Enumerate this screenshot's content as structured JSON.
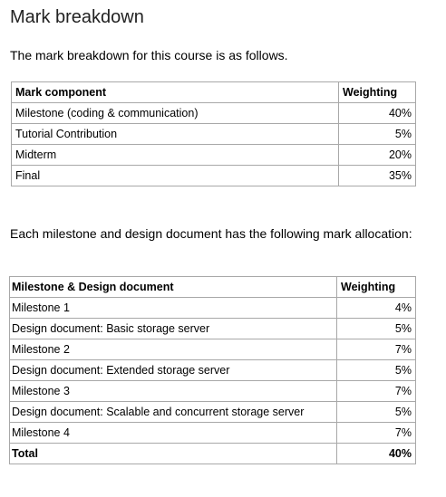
{
  "heading": "Mark breakdown",
  "intro": "The mark breakdown for this course is as follows.",
  "table1": {
    "headers": [
      "Mark component",
      "Weighting"
    ],
    "rows": [
      [
        "Milestone (coding & communication)",
        "40%"
      ],
      [
        "Tutorial Contribution",
        "5%"
      ],
      [
        "Midterm",
        "20%"
      ],
      [
        "Final",
        "35%"
      ]
    ]
  },
  "description": "Each milestone and design document has the following mark allocation:",
  "table2": {
    "headers": [
      "Milestone & Design document",
      "Weighting"
    ],
    "rows": [
      [
        "Milestone 1",
        "4%"
      ],
      [
        "Design document: Basic storage server",
        "5%"
      ],
      [
        "Milestone 2",
        "7%"
      ],
      [
        "Design document: Extended storage server",
        "5%"
      ],
      [
        "Milestone 3",
        "7%"
      ],
      [
        "Design document: Scalable and concurrent storage server",
        "5%"
      ],
      [
        "Milestone 4",
        "7%"
      ]
    ],
    "total": [
      "Total",
      "40%"
    ]
  }
}
